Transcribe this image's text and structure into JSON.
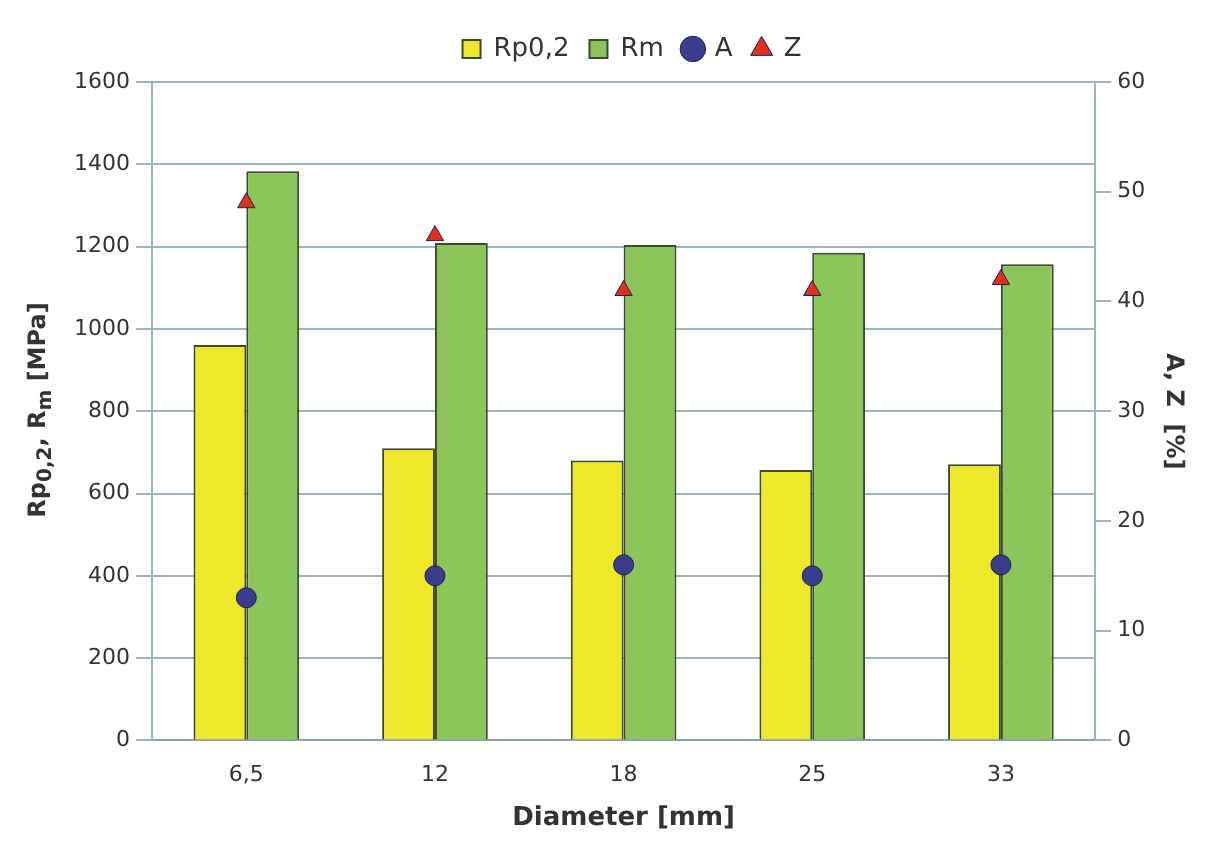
{
  "chart_data": {
    "type": "bar",
    "xlabel": "Diameter [mm]",
    "ylabel": "Rp$_{0,2}$, R$_{m}$  [MPa]",
    "y2label": "A, Z  [%]",
    "categories": [
      "6,5",
      "12",
      "18",
      "25",
      "33"
    ],
    "series": [
      {
        "name": "Rp0,2",
        "type": "bar",
        "color": "#eee82a",
        "values": [
          961,
          710,
          680,
          657,
          671
        ]
      },
      {
        "name": "Rm",
        "type": "bar",
        "color": "#8cc65a",
        "values": [
          1383,
          1209,
          1204,
          1185,
          1157
        ]
      },
      {
        "name": "A",
        "type": "scatter",
        "axis": "y2",
        "marker": "circle",
        "color": "#3c3c8c",
        "x": [
          "6,5",
          "12",
          "18",
          "25",
          "33"
        ],
        "values": [
          13,
          15,
          16,
          15,
          16
        ]
      },
      {
        "name": "Z",
        "type": "scatter",
        "axis": "y2",
        "marker": "triangle",
        "color": "#e0301e",
        "x": [
          "6,5",
          "12",
          "18",
          "25",
          "33"
        ],
        "values": [
          49,
          46,
          41,
          41,
          42
        ]
      }
    ],
    "ylim": [
      0,
      1600
    ],
    "yticks": [
      0,
      200,
      400,
      600,
      800,
      1000,
      1200,
      1400,
      1600
    ],
    "y2lim": [
      0,
      60
    ],
    "y2ticks": [
      0,
      10,
      20,
      30,
      40,
      50,
      60
    ],
    "grid": "y",
    "legend": "top"
  }
}
